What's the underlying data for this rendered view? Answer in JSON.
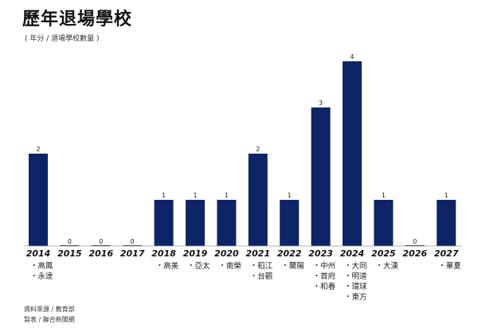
{
  "header": {
    "title": "歷年退場學校",
    "subtitle": "( 年分 / 退場學校數量 )"
  },
  "footer": {
    "source": "資料來源 / 教育部",
    "credit": "製表 / 聯合新聞網"
  },
  "colors": {
    "bar": "#0d2466",
    "axis": "#999999",
    "background": "#ffffff"
  },
  "chart_data": {
    "type": "bar",
    "title": "歷年退場學校",
    "subtitle": "( 年分 / 退場學校數量 )",
    "categories": [
      "2014",
      "2015",
      "2016",
      "2017",
      "2018",
      "2019",
      "2020",
      "2021",
      "2022",
      "2023",
      "2024",
      "2025",
      "2026",
      "2027"
    ],
    "values": [
      2,
      0,
      0,
      0,
      1,
      1,
      1,
      2,
      1,
      3,
      4,
      1,
      0,
      1
    ],
    "schools": [
      [
        "高鳳",
        "永達"
      ],
      [],
      [],
      [],
      [
        "高美"
      ],
      [
        "亞太"
      ],
      [
        "南榮"
      ],
      [
        "稻江",
        "台觀"
      ],
      [
        "蘭陽"
      ],
      [
        "中州",
        "首府",
        "和春"
      ],
      [
        "大同",
        "明道",
        "環球",
        "東方"
      ],
      [
        "大漢"
      ],
      [],
      [
        "華夏"
      ]
    ],
    "ylim": [
      0,
      4
    ],
    "grid": false,
    "legend": "none"
  }
}
